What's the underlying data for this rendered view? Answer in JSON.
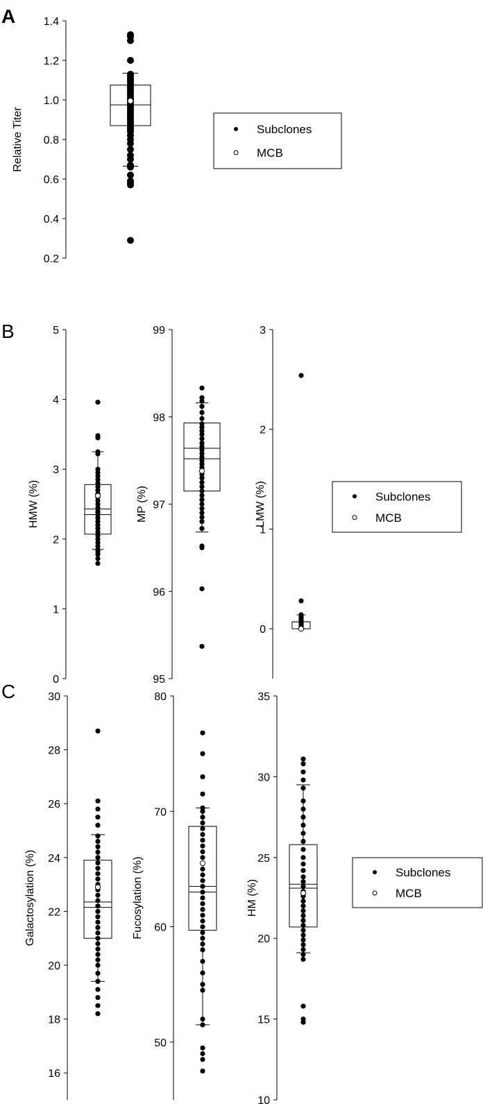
{
  "panels": [
    {
      "letter": "A",
      "charts": [
        0
      ],
      "legend": 0
    },
    {
      "letter": "B",
      "charts": [
        1,
        2,
        3
      ],
      "legend": 1
    },
    {
      "letter": "C",
      "charts": [
        4,
        5,
        6
      ],
      "legend": 2
    }
  ],
  "legends": [
    {
      "entries": [
        "Subclones",
        "MCB"
      ]
    },
    {
      "entries": [
        "Subclones",
        "MCB"
      ]
    },
    {
      "entries": [
        "Subclones",
        "MCB"
      ]
    }
  ],
  "chart_data": [
    {
      "type": "scatter",
      "panel": "A",
      "ylabel": "Relative Titer",
      "ylim": [
        0.2,
        1.4
      ],
      "yticks": [
        "0.2",
        "0.4",
        "0.6",
        "0.8",
        "1.0",
        "1.2",
        "1.4"
      ],
      "box": {
        "q1": 0.87,
        "median": 0.975,
        "q3": 1.075,
        "whisker_low": 0.665,
        "whisker_high": 1.135
      },
      "series": [
        {
          "name": "Subclones",
          "values": [
            1.33,
            1.32,
            1.3,
            1.2,
            1.13,
            1.12,
            1.11,
            1.1,
            1.09,
            1.08,
            1.07,
            1.06,
            1.05,
            1.04,
            1.03,
            1.02,
            1.01,
            1.0,
            0.99,
            0.98,
            0.97,
            0.96,
            0.95,
            0.94,
            0.93,
            0.92,
            0.91,
            0.9,
            0.89,
            0.88,
            0.87,
            0.86,
            0.85,
            0.84,
            0.82,
            0.8,
            0.78,
            0.75,
            0.72,
            0.7,
            0.67,
            0.66,
            0.62,
            0.59,
            0.58,
            0.57,
            0.29
          ]
        },
        {
          "name": "MCB",
          "values": [
            0.995
          ]
        }
      ]
    },
    {
      "type": "scatter",
      "panel": "B",
      "ylabel": "HMW (%)",
      "ylim": [
        0,
        5
      ],
      "yticks": [
        "0",
        "1",
        "2",
        "3",
        "4",
        "5"
      ],
      "box": {
        "q1": 2.07,
        "median": 2.35,
        "q3": 2.78,
        "whisker_low": 1.85,
        "whisker_high": 3.25,
        "mean": 2.43
      },
      "series": [
        {
          "name": "Subclones",
          "values": [
            3.96,
            3.48,
            3.45,
            3.25,
            3.22,
            3.0,
            2.95,
            2.9,
            2.85,
            2.8,
            2.75,
            2.7,
            2.65,
            2.6,
            2.55,
            2.5,
            2.45,
            2.4,
            2.38,
            2.35,
            2.3,
            2.25,
            2.2,
            2.15,
            2.1,
            2.05,
            2.0,
            1.95,
            1.9,
            1.85,
            1.82,
            1.78,
            1.72,
            1.65
          ]
        },
        {
          "name": "MCB",
          "values": [
            2.62
          ]
        }
      ]
    },
    {
      "type": "scatter",
      "panel": "B",
      "ylabel": "MP (%)",
      "ylim": [
        95,
        99
      ],
      "yticks": [
        "95",
        "96",
        "97",
        "98",
        "99"
      ],
      "box": {
        "q1": 97.15,
        "median": 97.52,
        "q3": 97.93,
        "whisker_low": 96.68,
        "whisker_high": 98.16,
        "mean": 97.64
      },
      "series": [
        {
          "name": "Subclones",
          "values": [
            98.33,
            98.22,
            98.18,
            98.12,
            98.05,
            97.98,
            97.92,
            97.88,
            97.84,
            97.8,
            97.75,
            97.7,
            97.66,
            97.62,
            97.58,
            97.54,
            97.5,
            97.46,
            97.42,
            97.38,
            97.34,
            97.3,
            97.25,
            97.2,
            97.15,
            97.1,
            97.05,
            97.0,
            96.95,
            96.9,
            96.85,
            96.8,
            96.72,
            96.52,
            96.5,
            96.03,
            95.37
          ]
        },
        {
          "name": "MCB",
          "values": [
            97.38
          ]
        }
      ]
    },
    {
      "type": "scatter",
      "panel": "B",
      "ylabel": "LMW (%)",
      "ylim": [
        -0.5,
        3
      ],
      "yticks": [
        "0",
        "1",
        "2",
        "3"
      ],
      "box": {
        "q1": 0.0,
        "median": 0.07,
        "q3": 0.07,
        "whisker_low": 0.0,
        "whisker_high": 0.14
      },
      "series": [
        {
          "name": "Subclones",
          "values": [
            2.54,
            0.28,
            0.14,
            0.12,
            0.1,
            0.08,
            0.07,
            0.06,
            0.05,
            0.04,
            0.03,
            0.02,
            0.01
          ]
        },
        {
          "name": "MCB",
          "values": [
            0.0
          ]
        }
      ]
    },
    {
      "type": "scatter",
      "panel": "C",
      "ylabel": "Galactosylation (%)",
      "ylim": [
        15,
        30
      ],
      "yticks": [
        "16",
        "18",
        "20",
        "22",
        "24",
        "26",
        "28",
        "30"
      ],
      "box": {
        "q1": 21.0,
        "median": 22.15,
        "q3": 23.9,
        "whisker_low": 19.4,
        "whisker_high": 24.85,
        "mean": 22.35
      },
      "series": [
        {
          "name": "Subclones",
          "values": [
            28.7,
            26.1,
            25.8,
            25.5,
            25.2,
            24.8,
            24.6,
            24.4,
            24.2,
            24.0,
            23.8,
            23.6,
            23.4,
            23.2,
            23.0,
            22.8,
            22.6,
            22.4,
            22.2,
            22.0,
            21.8,
            21.6,
            21.4,
            21.2,
            21.0,
            20.8,
            20.6,
            20.4,
            20.2,
            20.0,
            19.7,
            19.4,
            19.1,
            18.8,
            18.5,
            18.2
          ]
        },
        {
          "name": "MCB",
          "values": [
            22.9
          ]
        }
      ]
    },
    {
      "type": "scatter",
      "panel": "C",
      "ylabel": "Fucosylation (%)",
      "ylim": [
        45,
        80
      ],
      "yticks": [
        "50",
        "60",
        "70",
        "80"
      ],
      "box": {
        "q1": 59.7,
        "median": 63.0,
        "q3": 68.7,
        "whisker_low": 51.5,
        "whisker_high": 70.3,
        "mean": 63.5
      },
      "series": [
        {
          "name": "Subclones",
          "values": [
            76.8,
            75.0,
            73.0,
            71.5,
            70.3,
            70.0,
            69.5,
            69.0,
            68.5,
            68.0,
            67.5,
            67.0,
            66.5,
            66.0,
            65.5,
            65.0,
            64.5,
            64.0,
            63.5,
            63.0,
            62.5,
            62.0,
            61.5,
            61.0,
            60.5,
            60.0,
            59.5,
            59.0,
            58.5,
            58.0,
            57.0,
            56.0,
            55.0,
            54.5,
            52.0,
            51.5,
            49.5,
            49.0,
            48.5,
            47.5
          ]
        },
        {
          "name": "MCB",
          "values": [
            65.5
          ]
        }
      ]
    },
    {
      "type": "scatter",
      "panel": "C",
      "ylabel": "HM (%)",
      "ylim": [
        10,
        35
      ],
      "yticks": [
        "10",
        "15",
        "20",
        "25",
        "30",
        "35"
      ],
      "box": {
        "q1": 20.7,
        "median": 23.1,
        "q3": 25.8,
        "whisker_low": 19.1,
        "whisker_high": 29.5,
        "mean": 23.35
      },
      "series": [
        {
          "name": "Subclones",
          "values": [
            31.1,
            30.8,
            30.3,
            29.8,
            29.3,
            28.5,
            28.0,
            27.5,
            27.0,
            26.5,
            26.0,
            25.5,
            25.0,
            24.6,
            24.2,
            23.8,
            23.5,
            23.2,
            22.9,
            22.6,
            22.3,
            22.0,
            21.7,
            21.4,
            21.1,
            20.8,
            20.5,
            20.2,
            19.9,
            19.6,
            19.3,
            19.0,
            18.7,
            15.8,
            15.0,
            14.8
          ]
        },
        {
          "name": "MCB",
          "values": [
            22.8
          ]
        }
      ]
    }
  ]
}
